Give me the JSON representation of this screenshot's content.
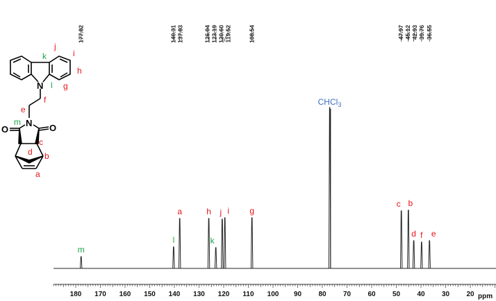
{
  "chart_data": {
    "type": "line",
    "title": "",
    "xlabel": "ppm",
    "ylabel": "",
    "xlim": [
      189,
      9.6
    ],
    "x_reversed": true,
    "grid": false,
    "xticks": [
      180,
      170,
      160,
      150,
      140,
      130,
      120,
      110,
      100,
      90,
      80,
      70,
      60,
      50,
      40,
      30,
      20
    ],
    "shift_labels": [
      "177.82",
      "140.31",
      "137.83",
      "126.04",
      "123.19",
      "120.60",
      "119.52",
      "108.54",
      "47.97",
      "45.12",
      "42.93",
      "39.76",
      "36.55"
    ],
    "peaks": [
      {
        "ppm": 177.82,
        "intensity": 17,
        "label": "m",
        "color": "#1aa34a"
      },
      {
        "ppm": 140.31,
        "intensity": 31,
        "label": "l",
        "color": "#1aa34a"
      },
      {
        "ppm": 137.83,
        "intensity": 72,
        "label": "a",
        "color": "#e8141b"
      },
      {
        "ppm": 126.04,
        "intensity": 72,
        "label": "h",
        "color": "#e8141b"
      },
      {
        "ppm": 123.19,
        "intensity": 30,
        "label": "k",
        "color": "#1aa34a"
      },
      {
        "ppm": 120.6,
        "intensity": 71,
        "label": "j",
        "color": "#e8141b"
      },
      {
        "ppm": 119.52,
        "intensity": 73,
        "label": "i",
        "color": "#e8141b"
      },
      {
        "ppm": 108.54,
        "intensity": 73,
        "label": "g",
        "color": "#e8141b"
      },
      {
        "ppm": 77.0,
        "intensity": 232,
        "label": "CHCl3",
        "color": "#3c6fc4"
      },
      {
        "ppm": 47.97,
        "intensity": 83,
        "label": "c",
        "color": "#e8141b"
      },
      {
        "ppm": 45.12,
        "intensity": 84,
        "label": "b",
        "color": "#e8141b"
      },
      {
        "ppm": 42.93,
        "intensity": 40,
        "label": "d",
        "color": "#e8141b"
      },
      {
        "ppm": 39.76,
        "intensity": 38,
        "label": "f",
        "color": "#e8141b"
      },
      {
        "ppm": 36.55,
        "intensity": 40,
        "label": "e",
        "color": "#e8141b"
      }
    ]
  },
  "structure": {
    "atoms": {
      "n1": "N",
      "n2": "N",
      "o1": "O",
      "o2": "O"
    },
    "labels": {
      "j": "j",
      "k": "k",
      "i": "i",
      "h": "h",
      "g": "g",
      "l": "l",
      "f": "f",
      "e": "e",
      "m": "m",
      "c": "c",
      "d": "d",
      "b": "b",
      "a": "a"
    },
    "colors": {
      "red": "#e8141b",
      "green": "#1aa34a"
    }
  }
}
